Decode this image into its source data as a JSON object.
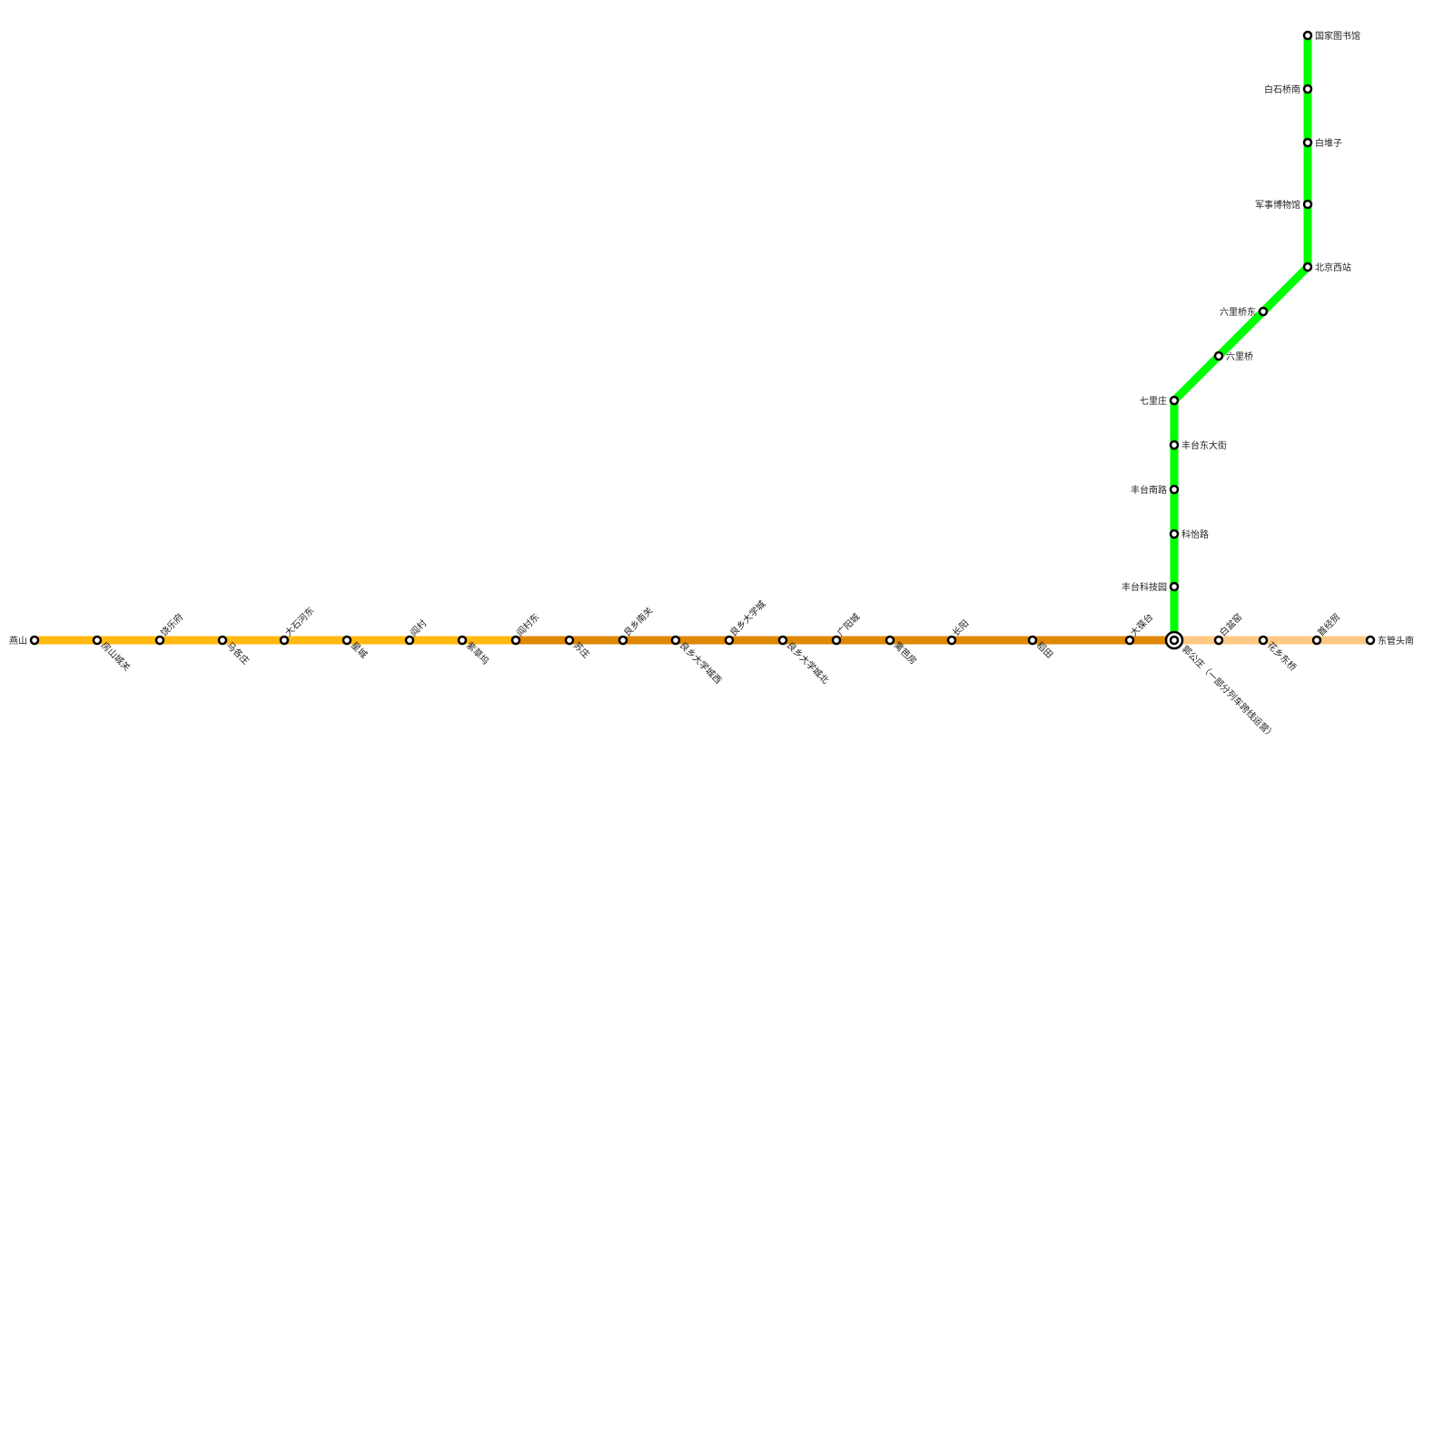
{
  "lines": [
    {
      "id": "yellow",
      "color": "#FFB90F",
      "stations": [
        "燕山",
        "房山城关",
        "饶乐府",
        "马各庄",
        "大石河东",
        "星城",
        "阎村",
        "紫草坞",
        "阎村东"
      ]
    },
    {
      "id": "orange",
      "color": "#DE8803",
      "stations": [
        "苏庄",
        "良乡南关",
        "良乡大学城西",
        "良乡大学城",
        "良乡大学城北",
        "广阳城",
        "篱笆房",
        "长阳",
        "稻田",
        "大葆台",
        "郭公庄（一部分列车跨线运营）"
      ]
    },
    {
      "id": "light-orange",
      "color": "#FFC983",
      "stations": [
        "白盆窑",
        "花乡东桥",
        "首经贸",
        "东管头南"
      ]
    },
    {
      "id": "green",
      "color": "#00FF00",
      "stations": [
        "丰台科技园",
        "科怡路",
        "丰台南路",
        "丰台东大街",
        "七里庄",
        "六里桥",
        "六里桥东",
        "北京西站",
        "军事博物馆",
        "白堆子",
        "白石桥南",
        "国家图书馆"
      ]
    }
  ],
  "interchange": "郭公庄（一部分列车跨线运营）"
}
